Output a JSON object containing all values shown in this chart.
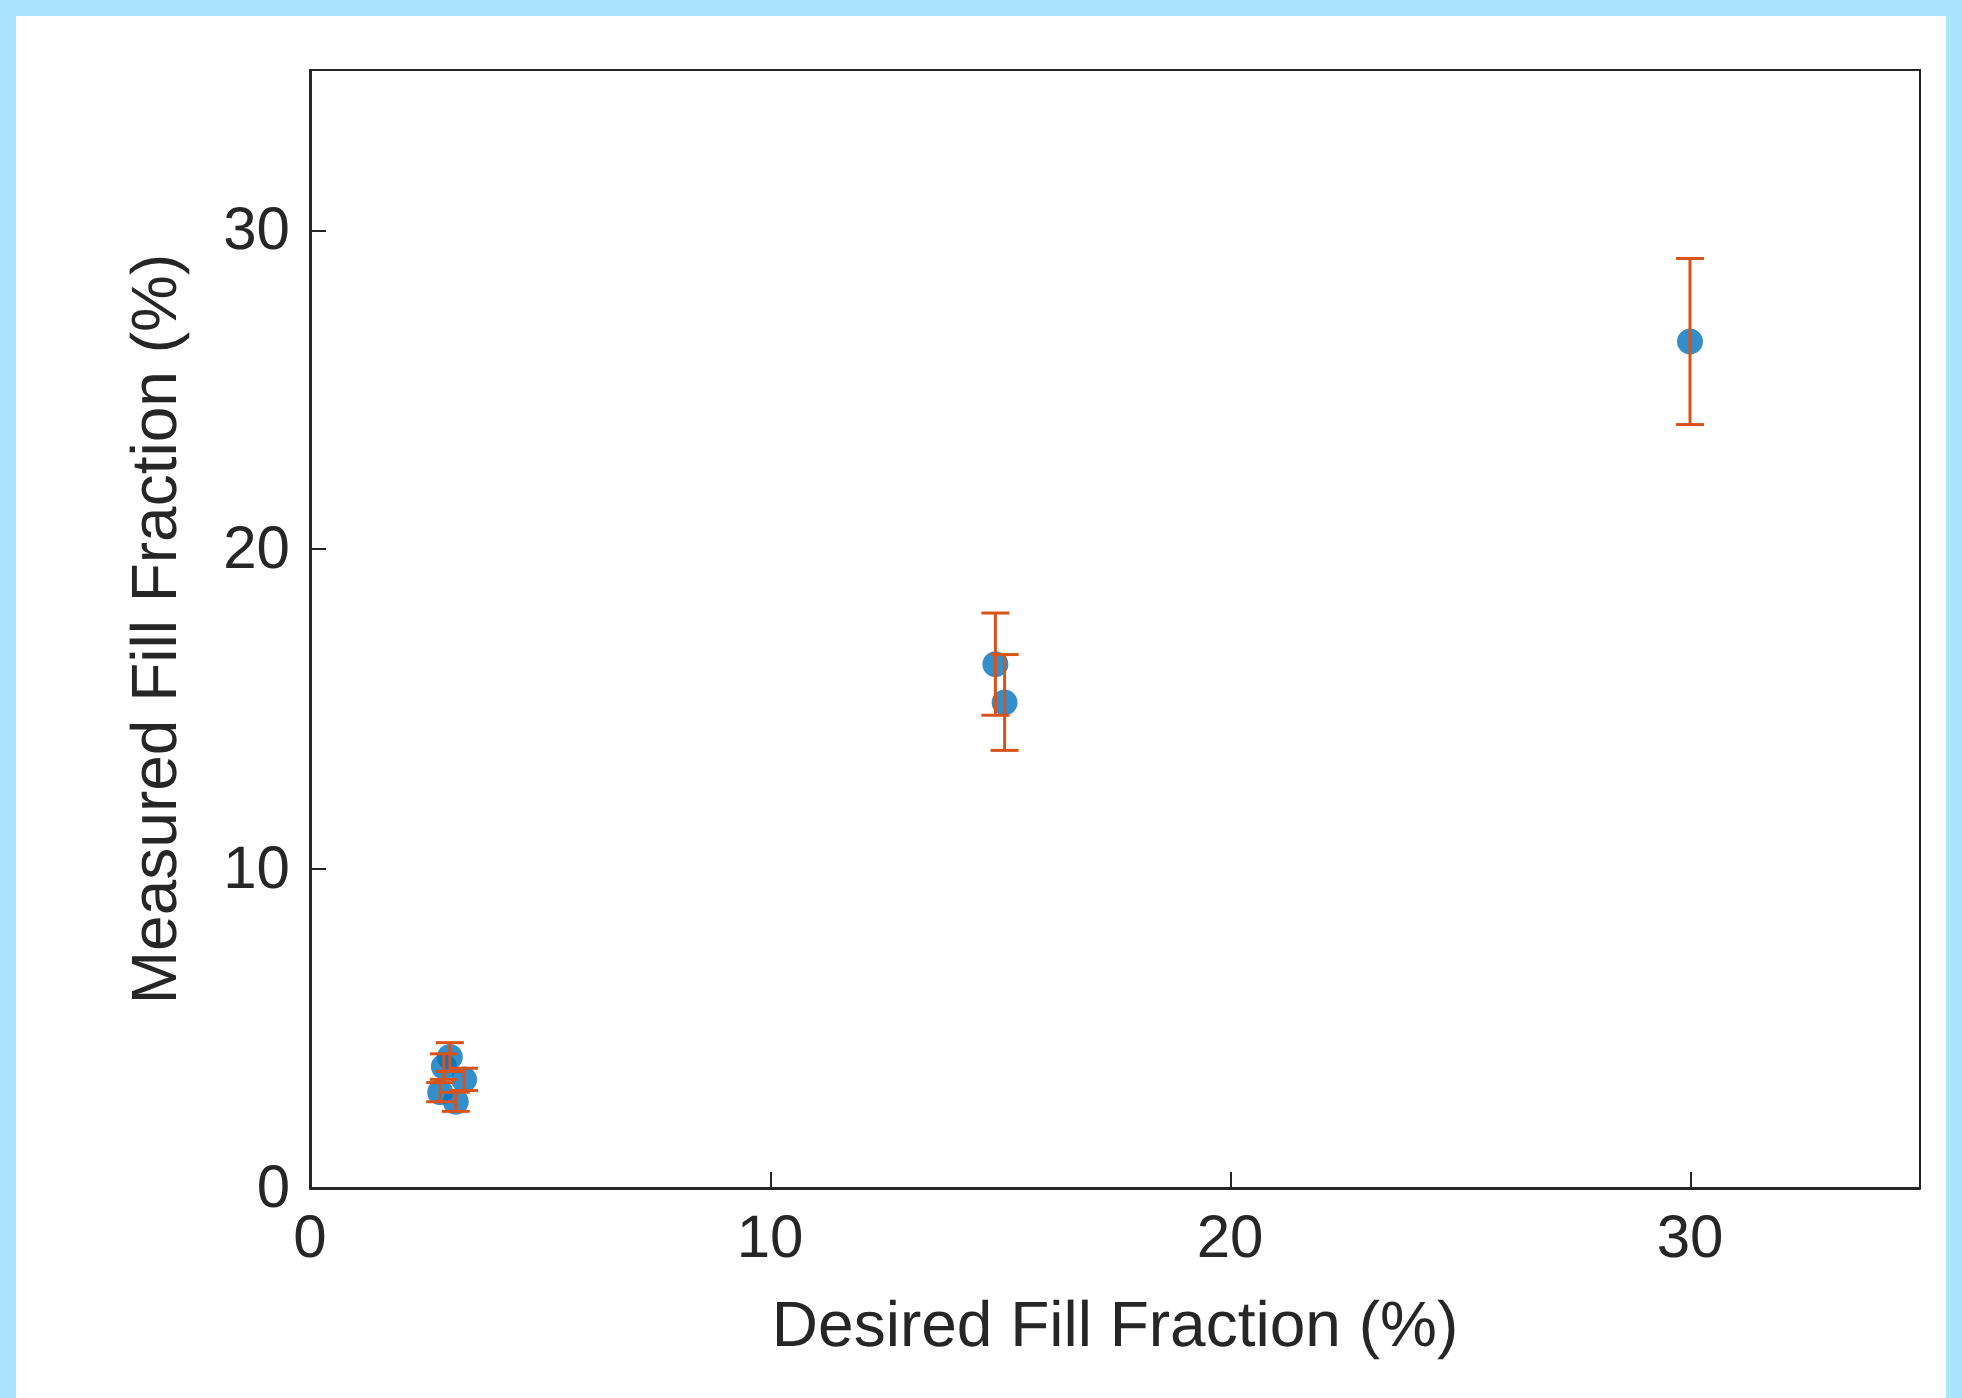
{
  "chart_data": {
    "type": "scatter",
    "xlabel": "Desired Fill Fraction (%)",
    "ylabel": "Measured Fill Fraction (%)",
    "x": [
      3.04,
      2.91,
      3.35,
      2.83,
      3.17,
      14.9,
      15.1,
      30
    ],
    "series": [
      {
        "color": "#0072bd",
        "values": [
          4.1,
          3.8,
          3.4,
          3.0,
          2.7,
          16.4,
          15.2,
          26.5
        ],
        "errors": [
          0.45,
          0.4,
          0.35,
          0.3,
          0.3,
          1.6,
          1.5,
          2.6
        ]
      }
    ],
    "xlim": [
      0,
      35
    ],
    "ylim": [
      0,
      35
    ],
    "xticks": [
      0,
      10,
      20,
      30
    ],
    "yticks": [
      0,
      10,
      20,
      30
    ],
    "marker": "circle"
  }
}
